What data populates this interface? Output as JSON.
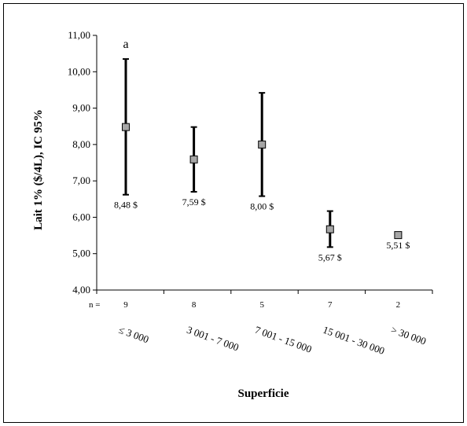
{
  "chart_data": {
    "type": "scatter",
    "title": "",
    "xlabel": "Superficie",
    "ylabel": "Lait 1% ($/4L), IC 95%",
    "ylim": [
      4.0,
      11.0
    ],
    "ytick_step": 1.0,
    "yticks": [
      "4,00",
      "5,00",
      "6,00",
      "7,00",
      "8,00",
      "9,00",
      "10,00",
      "11,00"
    ],
    "n_label": "n =",
    "categories": [
      "≤ 3 000",
      "3 001 - 7 000",
      "7 001 - 15 000",
      "15 001 - 30 000",
      "> 30 000"
    ],
    "n": [
      "9",
      "8",
      "5",
      "7",
      "2"
    ],
    "values": [
      8.48,
      7.59,
      8.0,
      5.67,
      5.51
    ],
    "value_labels": [
      "8,48 $",
      "7,59 $",
      "8,00 $",
      "5,67 $",
      "5,51 $"
    ],
    "ci_low": [
      6.62,
      6.7,
      6.58,
      5.18,
      null
    ],
    "ci_high": [
      10.35,
      8.48,
      9.42,
      6.17,
      null
    ],
    "annotations": [
      {
        "category_index": 0,
        "text": "a"
      }
    ],
    "grid": false,
    "marker_color": "#a6a6a6"
  }
}
